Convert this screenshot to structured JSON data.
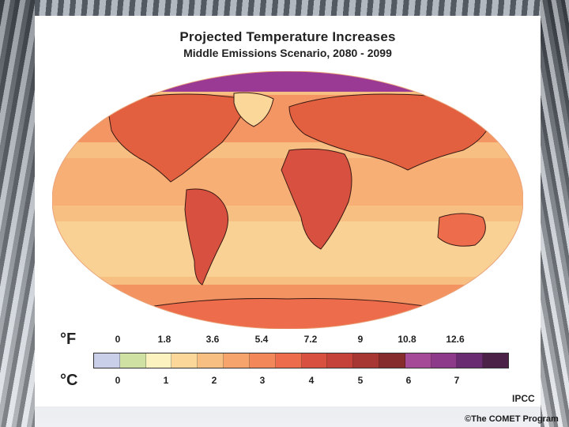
{
  "title": "Projected Temperature Increases",
  "subtitle": "Middle Emissions Scenario, 2080 - 2099",
  "legend": {
    "unit_f": "°F",
    "unit_c": "°C",
    "f_ticks": [
      "0",
      "1.8",
      "3.6",
      "5.4",
      "7.2",
      "9",
      "10.8",
      "12.6"
    ],
    "c_ticks": [
      "0",
      "1",
      "2",
      "3",
      "4",
      "5",
      "6",
      "7"
    ],
    "colors": [
      "#c9cfe8",
      "#cfe2a4",
      "#fbf2bf",
      "#fbd79a",
      "#f8bf82",
      "#f6a36c",
      "#f2885a",
      "#ec6c4b",
      "#d8503f",
      "#c4423a",
      "#a63732",
      "#872c2c",
      "#a54a97",
      "#8d3a8a",
      "#6a2c70",
      "#4c2148"
    ]
  },
  "map": {
    "background_color": "#f8bf82",
    "polar_color": "#9b3a94"
  },
  "source": "IPCC",
  "credit": "©The COMET Program"
}
